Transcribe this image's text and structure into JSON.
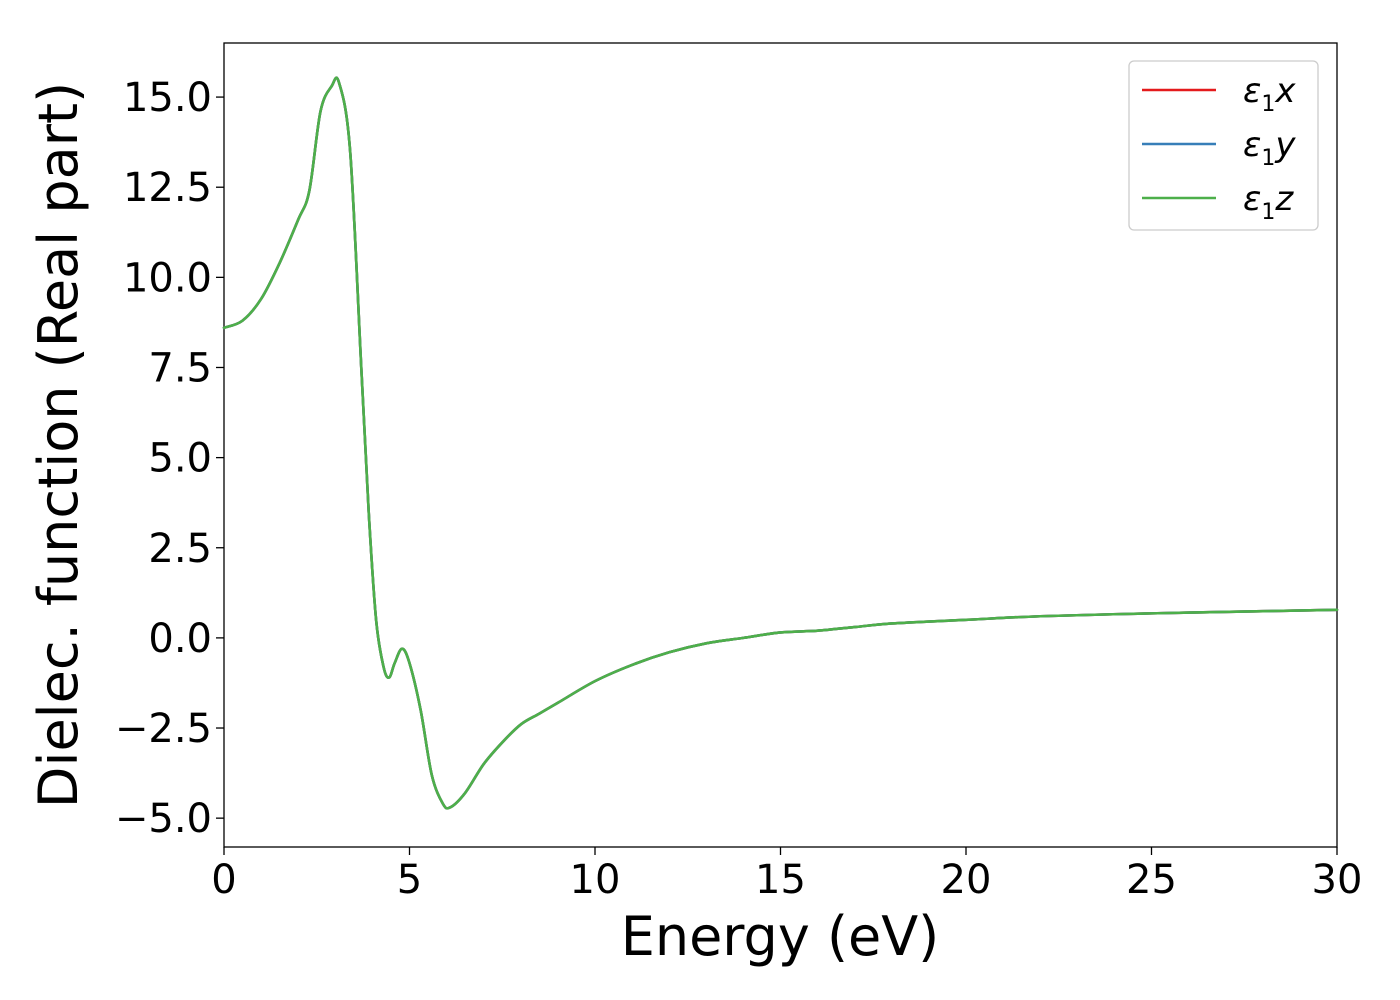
{
  "chart_data": {
    "type": "line",
    "title": "",
    "xlabel": "Energy (eV)",
    "ylabel": "Dielec. function (Real part)",
    "xlim": [
      0,
      30
    ],
    "ylim": [
      -5.8,
      16.5
    ],
    "xticks": [
      0,
      5,
      10,
      15,
      20,
      25,
      30
    ],
    "xtick_labels": [
      "0",
      "5",
      "10",
      "15",
      "20",
      "25",
      "30"
    ],
    "yticks": [
      -5.0,
      -2.5,
      0.0,
      2.5,
      5.0,
      7.5,
      10.0,
      12.5,
      15.0
    ],
    "ytick_labels": [
      "−5.0",
      "−2.5",
      "0.0",
      "2.5",
      "5.0",
      "7.5",
      "10.0",
      "12.5",
      "15.0"
    ],
    "grid": false,
    "legend_position": "top-right",
    "x": [
      0,
      0.5,
      1.0,
      1.5,
      2.0,
      2.3,
      2.6,
      2.9,
      3.1,
      3.4,
      3.7,
      3.9,
      4.1,
      4.3,
      4.45,
      4.6,
      4.8,
      5.0,
      5.3,
      5.6,
      5.9,
      6.1,
      6.5,
      7.0,
      7.5,
      8.0,
      8.5,
      9.0,
      10.0,
      11.0,
      12.0,
      13.0,
      14.0,
      15.0,
      16.0,
      17.0,
      18.0,
      20.0,
      22.0,
      25.0,
      28.0,
      30.0
    ],
    "series": [
      {
        "name": "ε1x",
        "subscript": "1",
        "symbol": "ε",
        "axis": "x",
        "color": "#e41a1c",
        "values": [
          8.6,
          8.8,
          9.4,
          10.4,
          11.6,
          12.4,
          14.6,
          15.3,
          15.4,
          13.5,
          7.5,
          3.5,
          0.5,
          -0.8,
          -1.1,
          -0.7,
          -0.3,
          -0.7,
          -2.0,
          -3.8,
          -4.6,
          -4.7,
          -4.3,
          -3.5,
          -2.9,
          -2.4,
          -2.1,
          -1.8,
          -1.2,
          -0.75,
          -0.4,
          -0.15,
          0.0,
          0.15,
          0.2,
          0.3,
          0.4,
          0.5,
          0.6,
          0.68,
          0.74,
          0.78
        ]
      },
      {
        "name": "ε1y",
        "subscript": "1",
        "symbol": "ε",
        "axis": "y",
        "color": "#377eb8",
        "values": [
          8.6,
          8.8,
          9.4,
          10.4,
          11.6,
          12.4,
          14.6,
          15.3,
          15.4,
          13.5,
          7.5,
          3.5,
          0.5,
          -0.8,
          -1.1,
          -0.7,
          -0.3,
          -0.7,
          -2.0,
          -3.8,
          -4.6,
          -4.7,
          -4.3,
          -3.5,
          -2.9,
          -2.4,
          -2.1,
          -1.8,
          -1.2,
          -0.75,
          -0.4,
          -0.15,
          0.0,
          0.15,
          0.2,
          0.3,
          0.4,
          0.5,
          0.6,
          0.68,
          0.74,
          0.78
        ]
      },
      {
        "name": "ε1z",
        "subscript": "1",
        "symbol": "ε",
        "axis": "z",
        "color": "#4daf4a",
        "values": [
          8.6,
          8.8,
          9.4,
          10.4,
          11.6,
          12.4,
          14.6,
          15.3,
          15.4,
          13.5,
          7.5,
          3.5,
          0.5,
          -0.8,
          -1.1,
          -0.7,
          -0.3,
          -0.7,
          -2.0,
          -3.8,
          -4.6,
          -4.7,
          -4.3,
          -3.5,
          -2.9,
          -2.4,
          -2.1,
          -1.8,
          -1.2,
          -0.75,
          -0.4,
          -0.15,
          0.0,
          0.15,
          0.2,
          0.3,
          0.4,
          0.5,
          0.6,
          0.68,
          0.74,
          0.78
        ]
      }
    ]
  }
}
